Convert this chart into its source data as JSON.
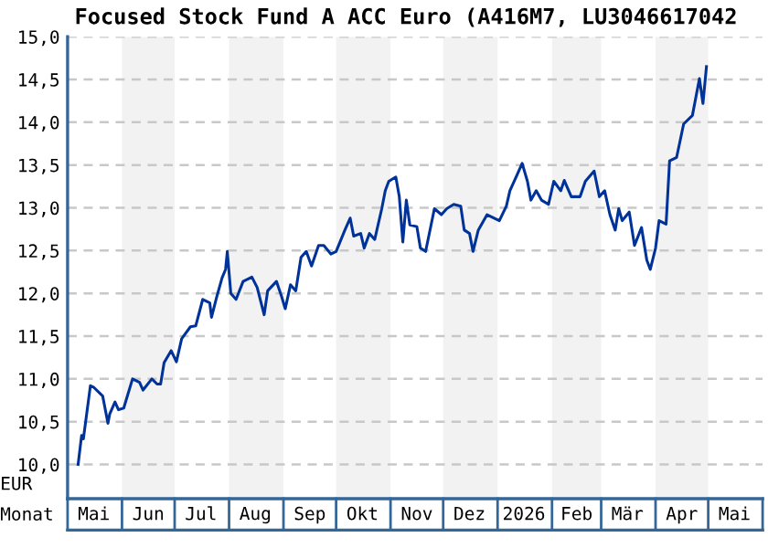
{
  "chart_data": {
    "type": "line",
    "title": "Focused Stock Fund A ACC Euro (A416M7, LU3046617042",
    "xlabel": "Monat",
    "ylabel": "EUR",
    "x": [
      "2025-05-07",
      "2025-05-09",
      "2025-05-10",
      "2025-05-14",
      "2025-05-16",
      "2025-05-21",
      "2025-05-24",
      "2025-05-25",
      "2025-05-28",
      "2025-05-30",
      "2025-06-02",
      "2025-06-07",
      "2025-06-11",
      "2025-06-13",
      "2025-06-18",
      "2025-06-21",
      "2025-06-23",
      "2025-06-25",
      "2025-06-29",
      "2025-07-02",
      "2025-07-05",
      "2025-07-10",
      "2025-07-13",
      "2025-07-17",
      "2025-07-21",
      "2025-07-22",
      "2025-07-25",
      "2025-07-28",
      "2025-07-30",
      "2025-07-31",
      "2025-08-02",
      "2025-08-05",
      "2025-08-09",
      "2025-08-14",
      "2025-08-17",
      "2025-08-21",
      "2025-08-23",
      "2025-08-28",
      "2025-08-31",
      "2025-09-02",
      "2025-09-05",
      "2025-09-08",
      "2025-09-11",
      "2025-09-14",
      "2025-09-17",
      "2025-09-21",
      "2025-09-24",
      "2025-09-28",
      "2025-10-01",
      "2025-10-06",
      "2025-10-09",
      "2025-10-11",
      "2025-10-15",
      "2025-10-17",
      "2025-10-20",
      "2025-10-23",
      "2025-10-27",
      "2025-10-29",
      "2025-10-31",
      "2025-11-04",
      "2025-11-06",
      "2025-11-08",
      "2025-11-10",
      "2025-11-12",
      "2025-11-16",
      "2025-11-18",
      "2025-11-21",
      "2025-11-26",
      "2025-11-30",
      "2025-12-03",
      "2025-12-07",
      "2025-12-11",
      "2025-12-13",
      "2025-12-16",
      "2025-12-18",
      "2025-12-21",
      "2025-12-26",
      "2026-01-02",
      "2026-01-06",
      "2026-01-08",
      "2026-01-12",
      "2026-01-15",
      "2026-01-18",
      "2026-01-20",
      "2026-01-23",
      "2026-01-26",
      "2026-01-30",
      "2026-02-02",
      "2026-02-06",
      "2026-02-08",
      "2026-02-12",
      "2026-02-17",
      "2026-02-20",
      "2026-02-25",
      "2026-02-28",
      "2026-03-03",
      "2026-03-06",
      "2026-03-09",
      "2026-03-11",
      "2026-03-13",
      "2026-03-17",
      "2026-03-20",
      "2026-03-24",
      "2026-03-27",
      "2026-03-29",
      "2026-04-01",
      "2026-04-03",
      "2026-04-07",
      "2026-04-09",
      "2026-04-13",
      "2026-04-17",
      "2026-04-22",
      "2026-04-26",
      "2026-04-28",
      "2026-04-30"
    ],
    "series": [
      {
        "color": "#003399",
        "values": [
          10.0,
          10.34,
          10.3,
          10.92,
          10.9,
          10.8,
          10.48,
          10.59,
          10.73,
          10.64,
          10.66,
          11.0,
          10.96,
          10.87,
          11.0,
          10.94,
          10.94,
          11.19,
          11.33,
          11.2,
          11.47,
          11.61,
          11.62,
          11.93,
          11.89,
          11.72,
          11.96,
          12.18,
          12.28,
          12.49,
          12.0,
          11.93,
          12.14,
          12.19,
          12.07,
          11.75,
          12.03,
          12.14,
          11.96,
          11.82,
          12.1,
          12.03,
          12.42,
          12.49,
          12.32,
          12.56,
          12.56,
          12.46,
          12.49,
          12.74,
          12.88,
          12.67,
          12.7,
          12.53,
          12.7,
          12.63,
          12.99,
          13.2,
          13.31,
          13.36,
          13.13,
          12.6,
          13.09,
          12.8,
          12.78,
          12.53,
          12.49,
          12.99,
          12.92,
          12.99,
          13.04,
          13.02,
          12.74,
          12.7,
          12.49,
          12.74,
          12.92,
          12.85,
          13.02,
          13.2,
          13.38,
          13.52,
          13.31,
          13.09,
          13.2,
          13.09,
          13.04,
          13.31,
          13.2,
          13.32,
          13.13,
          13.13,
          13.31,
          13.43,
          13.13,
          13.2,
          12.92,
          12.74,
          12.99,
          12.85,
          12.95,
          12.56,
          12.77,
          12.39,
          12.28,
          12.53,
          12.85,
          12.81,
          13.55,
          13.59,
          13.98,
          14.08,
          14.51,
          14.22,
          14.65
        ]
      }
    ],
    "xlim": [
      "2025-05-01",
      "2026-06-01"
    ],
    "xticks": [
      {
        "value": "2025-05-16",
        "label": "Mai"
      },
      {
        "value": "2025-06-16",
        "label": "Jun"
      },
      {
        "value": "2025-07-16",
        "label": "Jul"
      },
      {
        "value": "2025-08-16",
        "label": "Aug"
      },
      {
        "value": "2025-09-16",
        "label": "Sep"
      },
      {
        "value": "2025-10-16",
        "label": "Okt"
      },
      {
        "value": "2025-11-16",
        "label": "Nov"
      },
      {
        "value": "2025-12-16",
        "label": "Dez"
      },
      {
        "value": "2026-01-16",
        "label": "2026"
      },
      {
        "value": "2026-02-15",
        "label": "Feb"
      },
      {
        "value": "2026-03-16",
        "label": "Mär"
      },
      {
        "value": "2026-04-16",
        "label": "Apr"
      },
      {
        "value": "2026-05-16",
        "label": "Mai"
      }
    ],
    "ylim": [
      9.6,
      15.0
    ],
    "yticks": [
      {
        "value": 10.0,
        "label": "10,0"
      },
      {
        "value": 10.5,
        "label": "10,5"
      },
      {
        "value": 11.0,
        "label": "11,0"
      },
      {
        "value": 11.5,
        "label": "11,5"
      },
      {
        "value": 12.0,
        "label": "12,0"
      },
      {
        "value": 12.5,
        "label": "12,5"
      },
      {
        "value": 13.0,
        "label": "13,0"
      },
      {
        "value": 13.5,
        "label": "13,5"
      },
      {
        "value": 14.0,
        "label": "14,0"
      },
      {
        "value": 14.5,
        "label": "14,5"
      },
      {
        "value": 15.0,
        "label": "15,0"
      }
    ],
    "bands": [
      {
        "axis": "x",
        "from": "2025-06-01",
        "to": "2025-07-01",
        "color": "#f2f2f2"
      },
      {
        "axis": "x",
        "from": "2025-08-01",
        "to": "2025-09-01",
        "color": "#f2f2f2"
      },
      {
        "axis": "x",
        "from": "2025-10-01",
        "to": "2025-11-01",
        "color": "#f2f2f2"
      },
      {
        "axis": "x",
        "from": "2025-12-01",
        "to": "2026-01-01",
        "color": "#f2f2f2"
      },
      {
        "axis": "x",
        "from": "2026-02-01",
        "to": "2026-03-01",
        "color": "#f2f2f2"
      },
      {
        "axis": "x",
        "from": "2026-04-01",
        "to": "2026-05-01",
        "color": "#f2f2f2"
      }
    ],
    "grid": "y",
    "line_style": "solid",
    "marker": "none"
  }
}
